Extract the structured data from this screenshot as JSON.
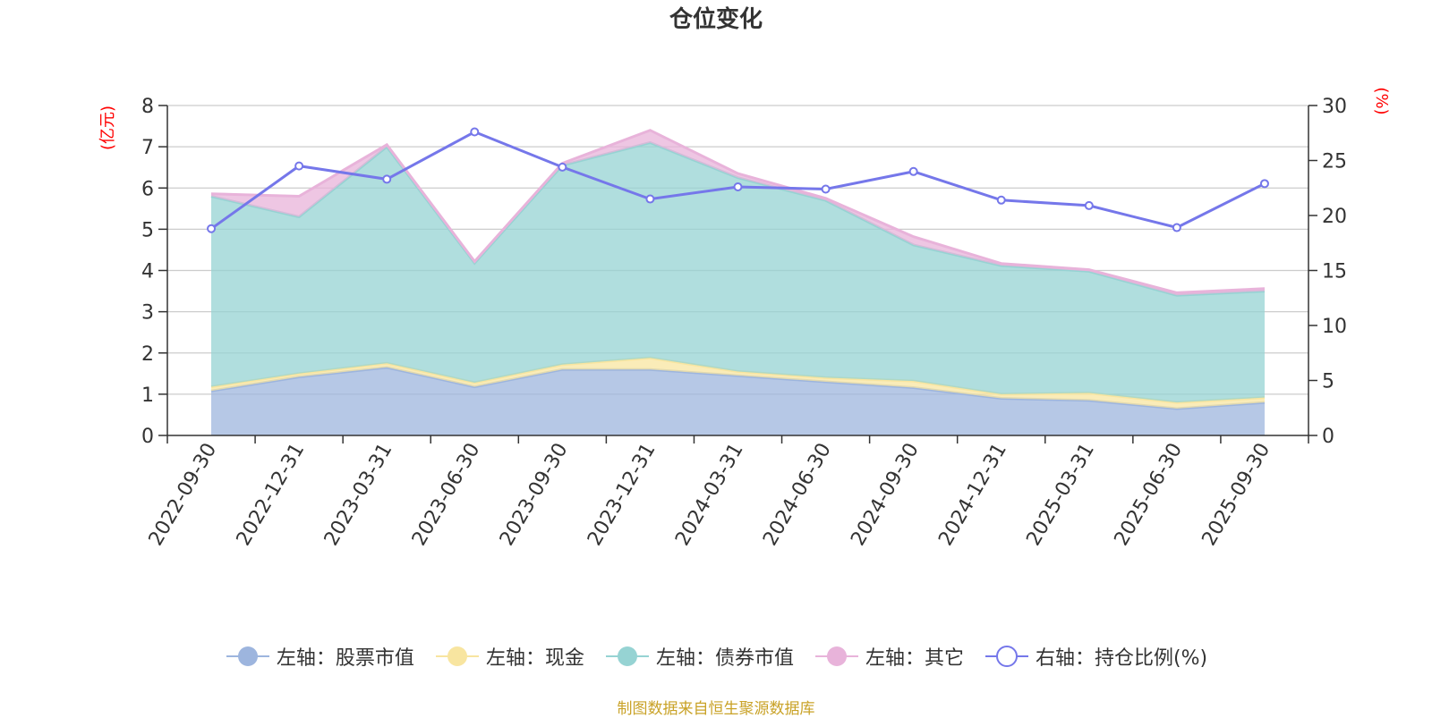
{
  "chart_data": {
    "type": "area",
    "title": "仓位变化",
    "categories": [
      "2022-09-30",
      "2022-12-31",
      "2023-03-31",
      "2023-06-30",
      "2023-09-30",
      "2023-12-31",
      "2024-03-31",
      "2024-06-30",
      "2024-09-30",
      "2024-12-31",
      "2025-03-31",
      "2025-06-30",
      "2025-09-30"
    ],
    "left_axis": {
      "unit": "(亿元)",
      "range": [
        0,
        8
      ],
      "ticks": [
        "0",
        "1",
        "2",
        "3",
        "4",
        "5",
        "6",
        "7",
        "8"
      ]
    },
    "right_axis": {
      "unit": "(%)",
      "range": [
        0,
        30
      ],
      "ticks": [
        "0",
        "5",
        "10",
        "15",
        "20",
        "25",
        "30"
      ]
    },
    "stacked": true,
    "series": [
      {
        "name": "左轴：股票市值",
        "axis": "left",
        "color": "#9db5de",
        "values": [
          1.08,
          1.42,
          1.65,
          1.18,
          1.6,
          1.6,
          1.45,
          1.3,
          1.16,
          0.9,
          0.85,
          0.65,
          0.8
        ]
      },
      {
        "name": "左轴：现金",
        "axis": "left",
        "color": "#f8e5a0",
        "values": [
          0.1,
          0.08,
          0.1,
          0.1,
          0.12,
          0.28,
          0.1,
          0.1,
          0.16,
          0.1,
          0.18,
          0.15,
          0.12
        ]
      },
      {
        "name": "左轴：债券市值",
        "axis": "left",
        "color": "#96d3d3",
        "values": [
          4.62,
          3.8,
          5.25,
          2.9,
          4.83,
          5.22,
          4.7,
          4.3,
          3.3,
          3.12,
          2.95,
          2.6,
          2.58
        ]
      },
      {
        "name": "左轴：其它",
        "axis": "left",
        "color": "#e8b3da",
        "values": [
          0.06,
          0.5,
          0.05,
          0.04,
          0.05,
          0.3,
          0.1,
          0.05,
          0.2,
          0.05,
          0.04,
          0.06,
          0.06
        ]
      },
      {
        "name": "右轴：持仓比例(%)",
        "axis": "right",
        "type": "line",
        "color": "#7577ea",
        "values": [
          18.8,
          24.5,
          23.3,
          27.6,
          24.4,
          21.5,
          22.6,
          22.4,
          24.0,
          21.4,
          20.9,
          18.9,
          22.9
        ]
      }
    ],
    "axis_unit_color": "#ff0000",
    "grid": true,
    "legend_position": "bottom"
  },
  "source_text": "制图数据来自恒生聚源数据库",
  "source_color": "#c9a227"
}
